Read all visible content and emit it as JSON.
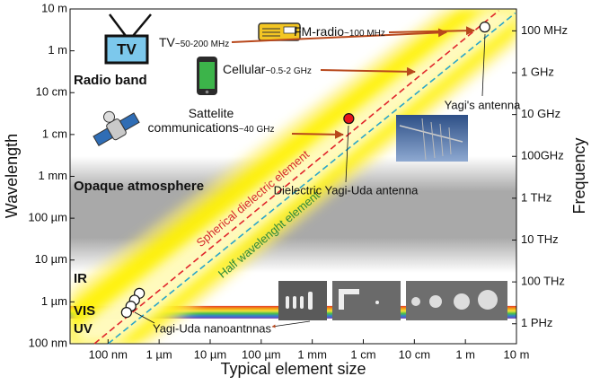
{
  "chart_data": {
    "type": "scatter",
    "x_label": "Typical element size",
    "y_label": "Wavelength",
    "y2_label": "Frequency",
    "log_x": true,
    "log_y": true,
    "xlim": [
      1.8e-08,
      10
    ],
    "xticks": [
      {
        "value": 1e-07,
        "label": "100 nm"
      },
      {
        "value": 1e-06,
        "label": "1 µm"
      },
      {
        "value": 1e-05,
        "label": "10 µm"
      },
      {
        "value": 0.0001,
        "label": "100 µm"
      },
      {
        "value": 0.001,
        "label": "1 mm"
      },
      {
        "value": 0.01,
        "label": "1 cm"
      },
      {
        "value": 0.1,
        "label": "10 cm"
      },
      {
        "value": 1,
        "label": "1 m"
      },
      {
        "value": 10,
        "label": "10 m"
      }
    ],
    "ylim": [
      1e-07,
      10
    ],
    "yticks": [
      {
        "value": 10,
        "label": "10 m"
      },
      {
        "value": 1,
        "label": "1 m"
      },
      {
        "value": 0.1,
        "label": "10 cm"
      },
      {
        "value": 0.01,
        "label": "1 cm"
      },
      {
        "value": 0.001,
        "label": "1 mm"
      },
      {
        "value": 0.0001,
        "label": "100 µm"
      },
      {
        "value": 1e-05,
        "label": "10 µm"
      },
      {
        "value": 1e-06,
        "label": "1 µm"
      },
      {
        "value": 1e-07,
        "label": "100 nm"
      }
    ],
    "y2lim": [
      3000000000000000.0,
      30000000.0
    ],
    "y2ticks": [
      {
        "value": 100000000.0,
        "label": "100 MHz"
      },
      {
        "value": 1000000000.0,
        "label": "1 GHz"
      },
      {
        "value": 10000000000.0,
        "label": "10 GHz"
      },
      {
        "value": 100000000000.0,
        "label": "100GHz"
      },
      {
        "value": 1000000000000.0,
        "label": "1 THz"
      },
      {
        "value": 10000000000000.0,
        "label": "10 THz"
      },
      {
        "value": 100000000000000.0,
        "label": "100 THz"
      },
      {
        "value": 1000000000000000.0,
        "label": "1 PHz"
      }
    ],
    "bands": [
      {
        "label": "Opaque atmosphere",
        "ylim": [
          5e-06,
          0.003
        ],
        "color": "#9a9a9a"
      },
      {
        "label": "VIS",
        "ylim": [
          4e-07,
          8e-07
        ],
        "color": "rainbow"
      }
    ],
    "region_labels": [
      "Radio band",
      "IR",
      "UV"
    ],
    "lines": [
      {
        "name": "Spherical dielectric element",
        "color": "#e0252b",
        "x": [
          5.4e-08,
          4.5
        ],
        "values": [
          1e-07,
          9.1
        ]
      },
      {
        "name": "Half wavelenght element",
        "color": "#2aa5c8",
        "x": [
          1e-07,
          9.5
        ],
        "values": [
          1e-07,
          8
        ]
      }
    ],
    "series": [
      {
        "name": "Yagi-Uda nanoantnnas",
        "color": "#ffffff",
        "x": [
          4.1e-07,
          3.3e-07,
          2.8e-07,
          2.3e-07
        ],
        "values": [
          1.6e-06,
          1.1e-06,
          7.9e-07,
          5.6e-07
        ]
      },
      {
        "name": "Dielectric Yagi-Uda antenna",
        "color": "#e8141b",
        "x": [
          0.0052
        ],
        "values": [
          0.024
        ]
      },
      {
        "name": "Yagi's antenna",
        "color": "#ffffff",
        "x": [
          2.4
        ],
        "values": [
          3.7
        ]
      }
    ],
    "services": [
      {
        "label": "TV",
        "range": "~50-200 MHz"
      },
      {
        "label": "FM-radio",
        "range": "~100 MHz"
      },
      {
        "label": "Cellular",
        "range": "~0.5-2 GHz"
      },
      {
        "label": "Sattelite communications",
        "range": "~40 GHz"
      }
    ]
  }
}
